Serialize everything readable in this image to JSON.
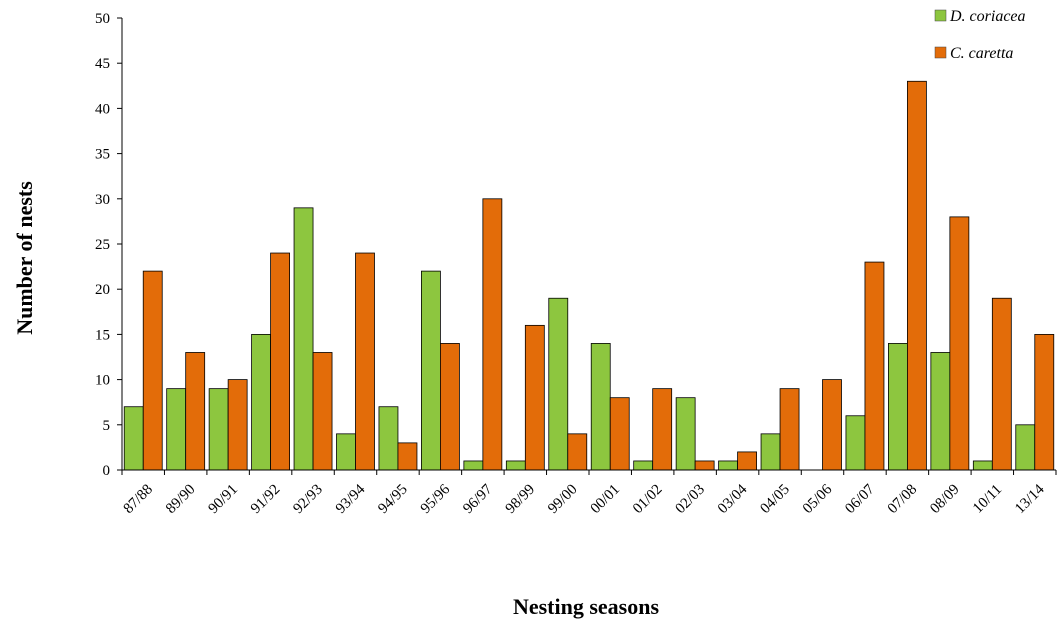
{
  "chart_data": {
    "type": "bar",
    "xlabel": "Nesting seasons",
    "ylabel": "Number of nests",
    "ylim": [
      0,
      50
    ],
    "yticks": [
      0,
      5,
      10,
      15,
      20,
      25,
      30,
      35,
      40,
      45,
      50
    ],
    "grid": false,
    "legend_position": "top-right",
    "categories": [
      "87/88",
      "89/90",
      "90/91",
      "91/92",
      "92/93",
      "93/94",
      "94/95",
      "95/96",
      "96/97",
      "98/99",
      "99/00",
      "00/01",
      "01/02",
      "02/03",
      "03/04",
      "04/05",
      "05/06",
      "06/07",
      "07/08",
      "08/09",
      "10/11",
      "13/14"
    ],
    "series": [
      {
        "name": "D. coriacea",
        "color": "#8dc63f",
        "values": [
          7,
          9,
          9,
          15,
          29,
          4,
          7,
          22,
          1,
          1,
          19,
          14,
          1,
          8,
          1,
          4,
          0,
          6,
          14,
          13,
          1,
          5
        ]
      },
      {
        "name": "C. caretta",
        "color": "#e36c09",
        "values": [
          22,
          13,
          10,
          24,
          13,
          24,
          3,
          14,
          30,
          16,
          4,
          8,
          9,
          1,
          2,
          9,
          10,
          23,
          43,
          28,
          19,
          15
        ]
      }
    ]
  }
}
